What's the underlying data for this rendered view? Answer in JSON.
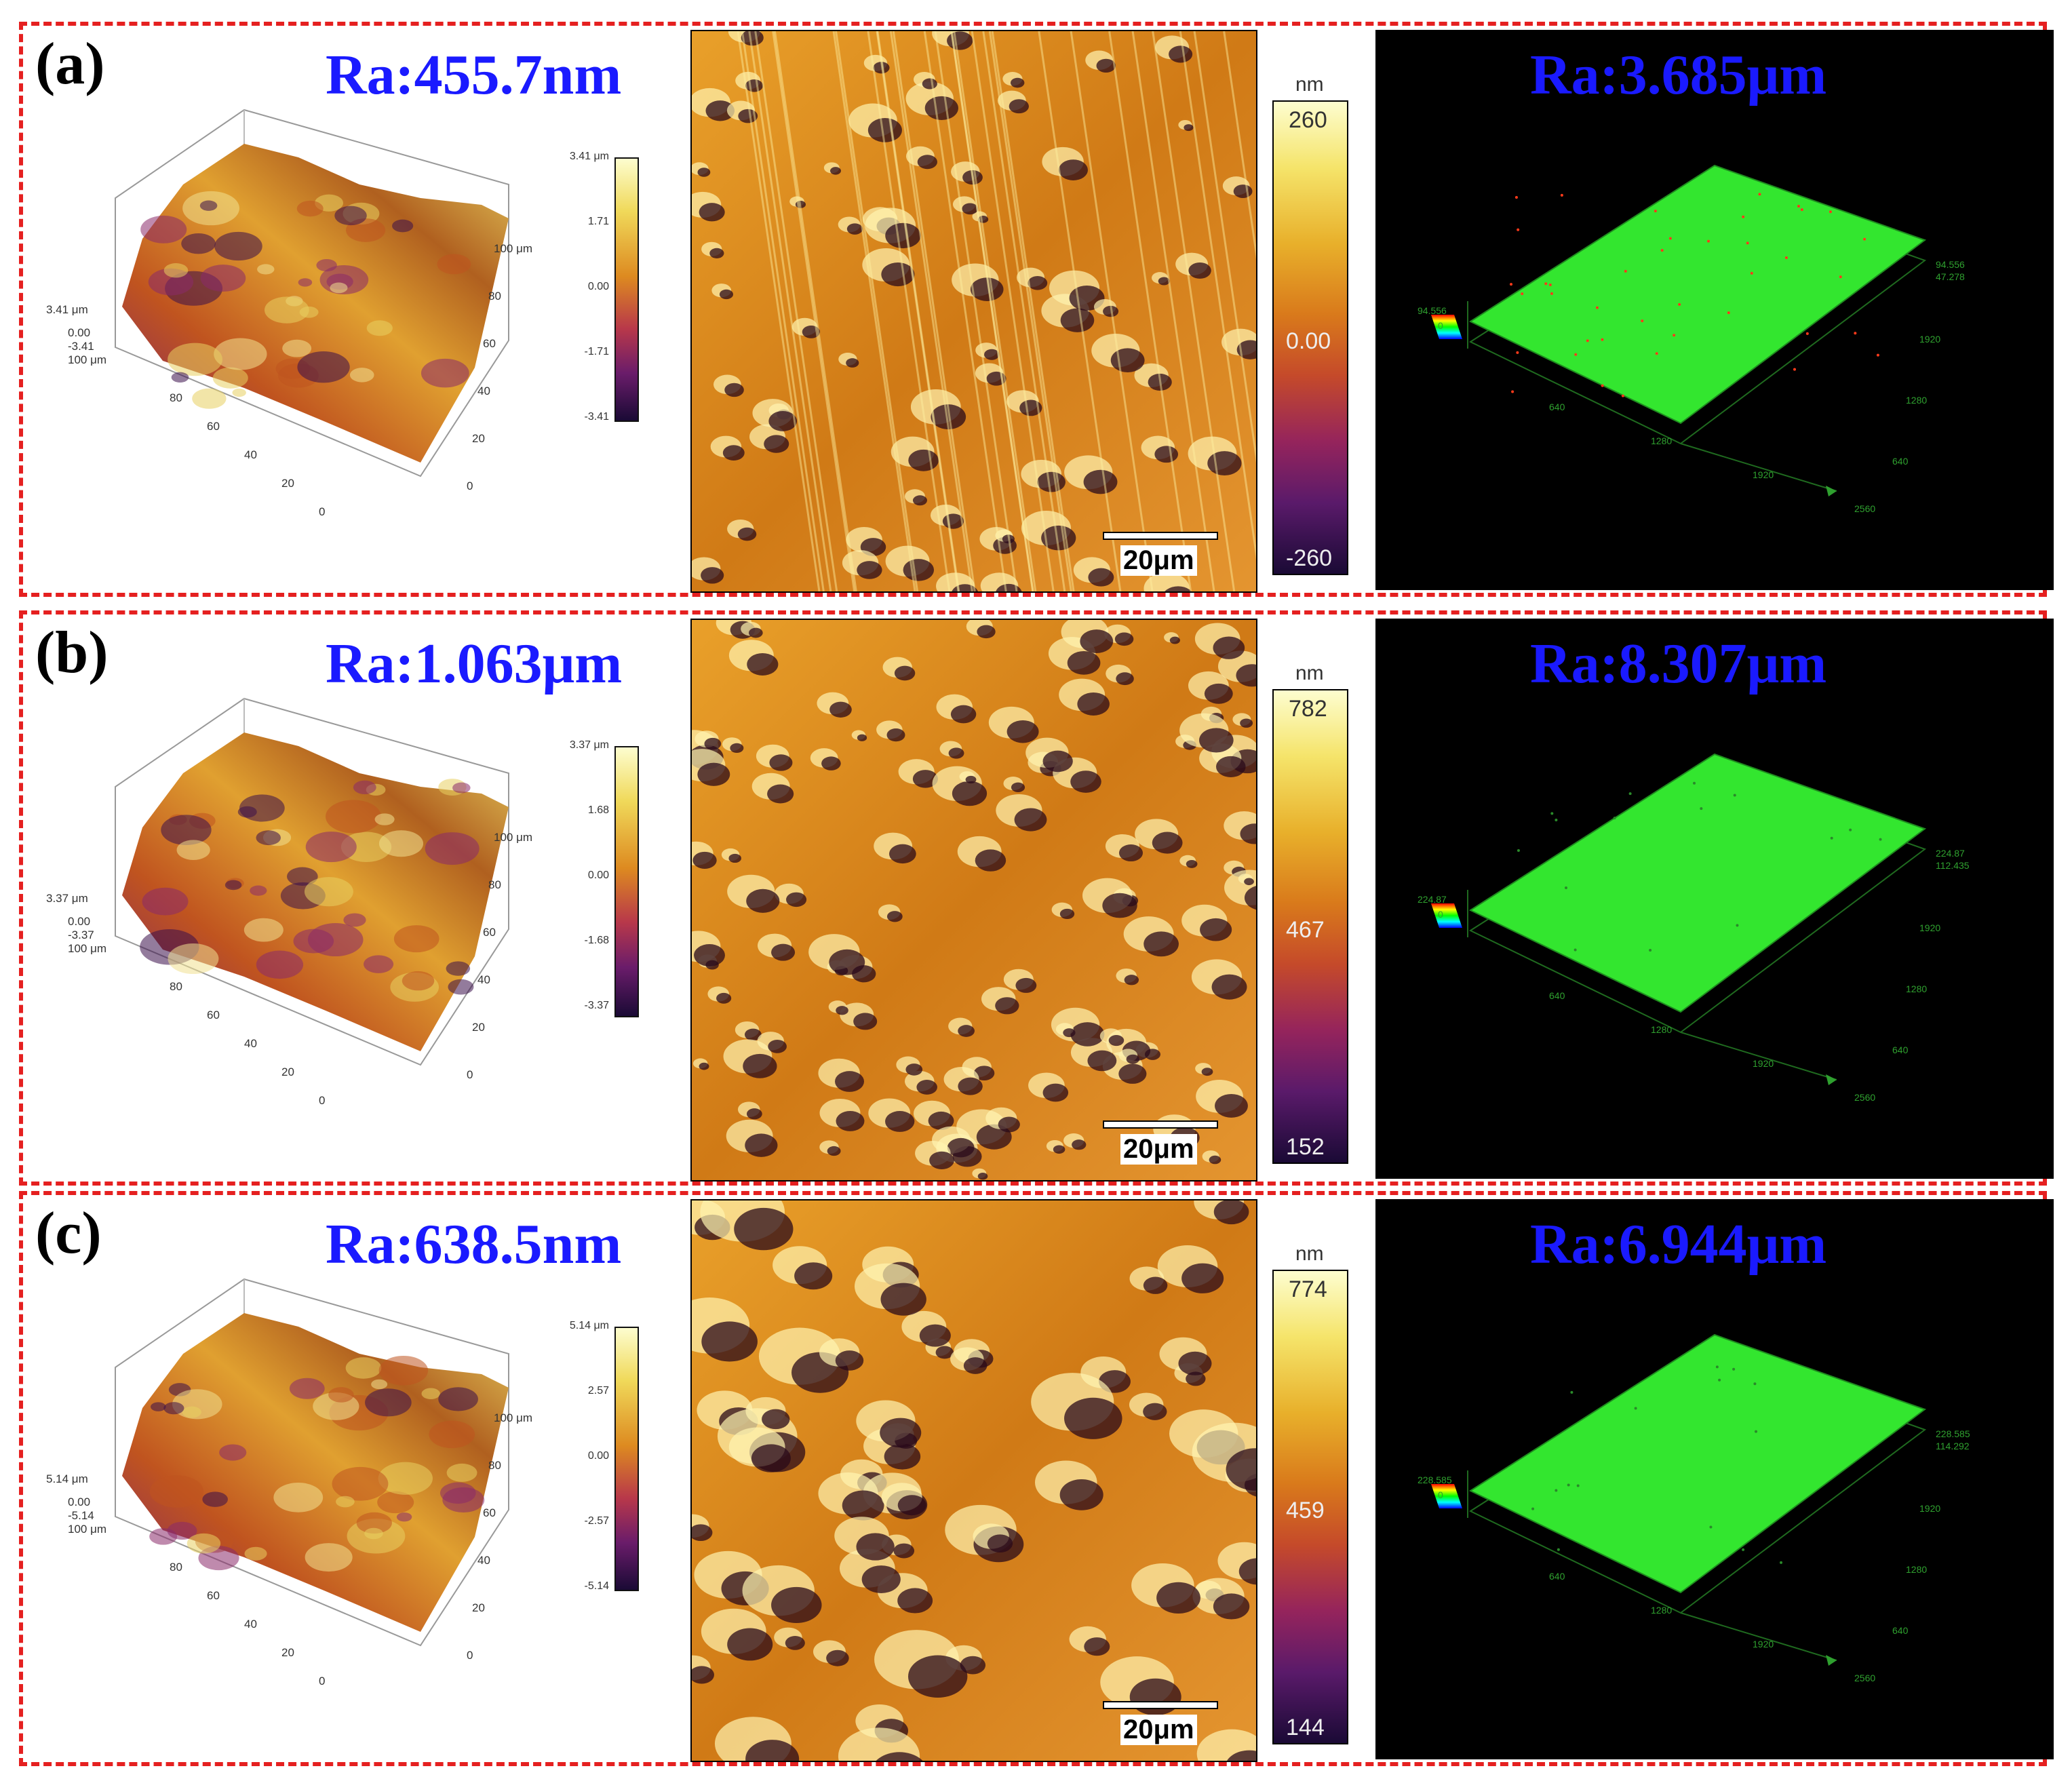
{
  "rows": [
    {
      "label": "(a)",
      "ra_left": "Ra:455.7nm",
      "ra_right": "Ra:3.685μm",
      "surface3d": {
        "z_top": "3.41 μm",
        "z_zero": "0.00",
        "z_neg": "-3.41",
        "y_max": "100 μm",
        "x_ticks": [
          "80",
          "60",
          "40",
          "20",
          "0"
        ],
        "y_ticks": [
          "100 μm",
          "80",
          "60",
          "40",
          "20",
          "0"
        ],
        "colorbar": [
          "3.41 μm",
          "1.71",
          "0.00",
          "-1.71",
          "-3.41"
        ]
      },
      "scalebar": "20μm",
      "colorbar": {
        "unit": "nm",
        "top": "260",
        "mid": "0.00",
        "bottom": "-260"
      },
      "confocal": {
        "z": "94.556",
        "z_right": "94.556",
        "z_mid": "47.278",
        "x_ticks": [
          "640",
          "1280",
          "1920",
          "2560"
        ],
        "y_ticks": [
          "1920",
          "1280",
          "640"
        ],
        "zmax_short": "94.556"
      }
    },
    {
      "label": "(b)",
      "ra_left": "Ra:1.063μm",
      "ra_right": "Ra:8.307μm",
      "surface3d": {
        "z_top": "3.37 μm",
        "z_zero": "0.00",
        "z_neg": "-3.37",
        "y_max": "100 μm",
        "x_ticks": [
          "80",
          "60",
          "40",
          "20",
          "0"
        ],
        "y_ticks": [
          "100 μm",
          "80",
          "60",
          "40",
          "20",
          "0"
        ],
        "colorbar": [
          "3.37 μm",
          "1.68",
          "0.00",
          "-1.68",
          "-3.37"
        ]
      },
      "scalebar": "20μm",
      "colorbar": {
        "unit": "nm",
        "top": "782",
        "mid": "467",
        "bottom": "152"
      },
      "confocal": {
        "z": "224.87",
        "z_right": "224.87",
        "z_mid": "112.435",
        "x_ticks": [
          "640",
          "1280",
          "1920",
          "2560"
        ],
        "y_ticks": [
          "1920",
          "1280",
          "640"
        ],
        "zmax_short": "224.87"
      }
    },
    {
      "label": "(c)",
      "ra_left": "Ra:638.5nm",
      "ra_right": "Ra:6.944μm",
      "surface3d": {
        "z_top": "5.14 μm",
        "z_zero": "0.00",
        "z_neg": "-5.14",
        "y_max": "100 μm",
        "x_ticks": [
          "80",
          "60",
          "40",
          "20",
          "0"
        ],
        "y_ticks": [
          "100 μm",
          "80",
          "60",
          "40",
          "20",
          "0"
        ],
        "colorbar": [
          "5.14 μm",
          "2.57",
          "0.00",
          "-2.57",
          "-5.14"
        ]
      },
      "scalebar": "20μm",
      "colorbar": {
        "unit": "nm",
        "top": "774",
        "mid": "459",
        "bottom": "144"
      },
      "confocal": {
        "z": "228.585",
        "z_right": "228.585",
        "z_mid": "114.292",
        "x_ticks": [
          "640",
          "1280",
          "1920",
          "2560"
        ],
        "y_ticks": [
          "1920",
          "1280",
          "640"
        ],
        "zmax_short": "228.585"
      }
    }
  ],
  "colors": {
    "border": "#e52020",
    "ra_text": "#1a1aff",
    "green_surface": "#33e62f"
  }
}
